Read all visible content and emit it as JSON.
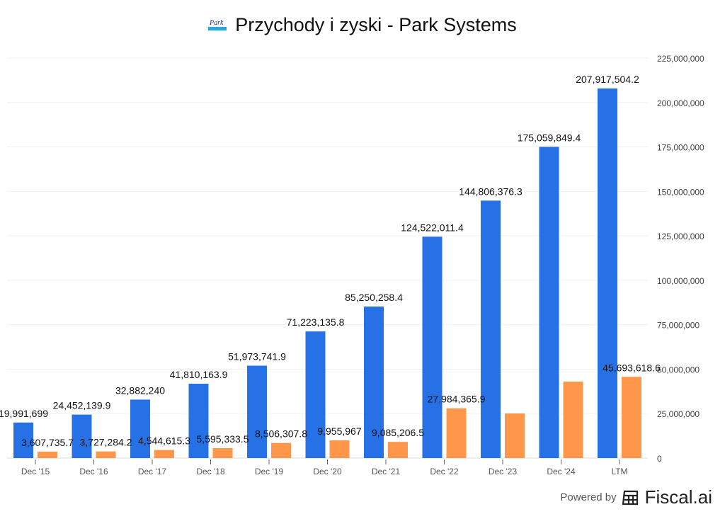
{
  "title": "Przychody i zyski - Park Systems",
  "logo_text": "Park Systems",
  "footer": {
    "powered_by": "Powered by",
    "brand": "Fiscal.ai"
  },
  "chart_data": {
    "type": "bar",
    "title": "Przychody i zyski - Park Systems",
    "categories": [
      "Dec '15",
      "Dec '16",
      "Dec '17",
      "Dec '18",
      "Dec '19",
      "Dec '20",
      "Dec '21",
      "Dec '22",
      "Dec '23",
      "Dec '24",
      "LTM"
    ],
    "series": [
      {
        "color": "#2671e6",
        "values": [
          19991699,
          24452139.9,
          32882240,
          41810163.9,
          51973741.9,
          71223135.8,
          85250258.4,
          124522011.4,
          144806376.3,
          175059849.4,
          207917504.2
        ],
        "labels": [
          "19,991,699",
          "24,452,139.9",
          "32,882,240",
          "41,810,163.9",
          "51,973,741.9",
          "71,223,135.8",
          "85,250,258.4",
          "124,522,011.4",
          "144,806,376.3",
          "175,059,849.4",
          "207,917,504.2"
        ]
      },
      {
        "color": "#ff974a",
        "values": [
          3607735.7,
          3727284.2,
          4544615.3,
          5595333.5,
          8506307.8,
          9955967,
          9085206.5,
          27984365.9,
          25100000,
          43000000,
          45693618.6
        ],
        "labels": [
          "3,607,735.7",
          "3,727,284.2",
          "4,544,615.3",
          "5,595,333.5",
          "8,506,307.8",
          "9,955,967",
          "9,085,206.5",
          "27,984,365.9",
          "",
          "",
          "45,693,618.6"
        ]
      }
    ],
    "ylim": [
      0,
      225000000
    ],
    "yticks": [
      "0",
      "25,000,000",
      "50,000,000",
      "75,000,000",
      "100,000,000",
      "125,000,000",
      "150,000,000",
      "175,000,000",
      "200,000,000",
      "225,000,000"
    ],
    "ytick_values": [
      0,
      25000000,
      50000000,
      75000000,
      100000000,
      125000000,
      150000000,
      175000000,
      200000000,
      225000000
    ],
    "y_axis_side": "right",
    "grid": true,
    "legend": "none"
  }
}
